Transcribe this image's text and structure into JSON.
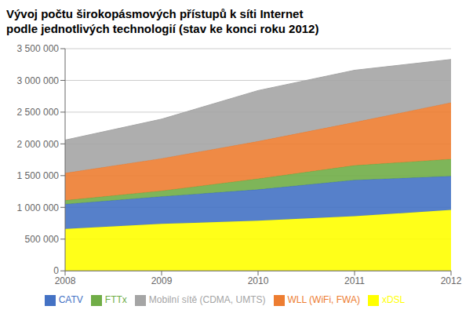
{
  "chart_data": {
    "type": "area",
    "stacked": true,
    "title": "Vývoj počtu širokopásmových přístupů k síti Internet",
    "subtitle": "podle jednotlivých technologií (stav ke konci roku 2012)",
    "x": [
      2008,
      2009,
      2010,
      2011,
      2012
    ],
    "xlim": [
      2008,
      2012
    ],
    "xticks": [
      2008,
      2009,
      2010,
      2011,
      2012
    ],
    "ylim": [
      0,
      3500000
    ],
    "yticks": [
      0,
      {
        "value": 500000,
        "label": "500 000"
      },
      {
        "value": 1000000,
        "label": "1 000 000"
      },
      {
        "value": 1500000,
        "label": "1 500 000"
      },
      {
        "value": 2000000,
        "label": "2 000 000"
      },
      {
        "value": 2500000,
        "label": "2 500 000"
      },
      {
        "value": 3000000,
        "label": "3 000 000"
      },
      {
        "value": 3500000,
        "label": "3 500 000"
      }
    ],
    "grid": "y",
    "legend": "bottom",
    "series": [
      {
        "name": "xDSL",
        "color": "#ffff00",
        "values": [
          660000,
          740000,
          790000,
          860000,
          960000
        ]
      },
      {
        "name": "CATV",
        "color": "#4472c4",
        "values": [
          390000,
          430000,
          490000,
          570000,
          530000
        ]
      },
      {
        "name": "FTTx",
        "color": "#70ad47",
        "values": [
          60000,
          90000,
          170000,
          230000,
          270000
        ]
      },
      {
        "name": "WLL (WiFi, FWA)",
        "color": "#ed7d31",
        "values": [
          430000,
          510000,
          590000,
          680000,
          890000
        ]
      },
      {
        "name": "Mobilní sítě (CDMA, UMTS)",
        "color": "#a5a5a5",
        "values": [
          520000,
          620000,
          800000,
          820000,
          680000
        ]
      }
    ]
  }
}
